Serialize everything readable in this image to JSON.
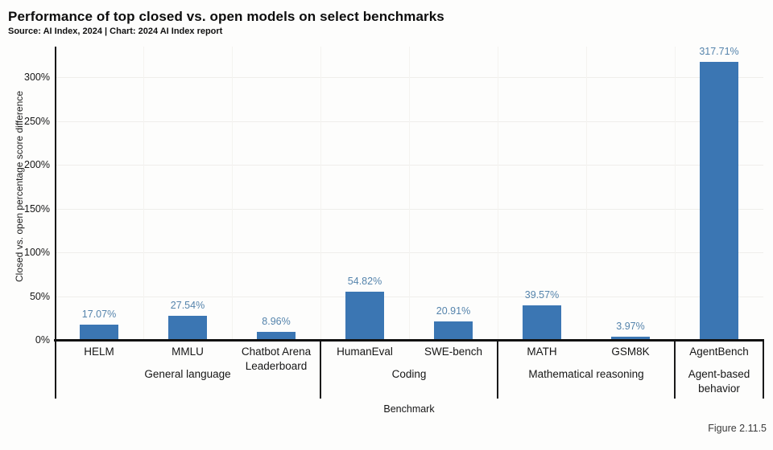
{
  "header": {
    "title": "Performance of top closed vs. open models on select benchmarks",
    "subtitle": "Source: AI Index, 2024 | Chart: 2024 AI Index report"
  },
  "figure_label": "Figure 2.11.5",
  "colors": {
    "bar": "#3b76b3",
    "value_label": "#5584ac",
    "axis": "#111111"
  },
  "chart_data": {
    "type": "bar",
    "title": "Performance of top closed vs. open models on select benchmarks",
    "xlabel": "Benchmark",
    "ylabel": "Closed vs. open percentage score difference",
    "ylim": [
      0,
      330
    ],
    "grid": true,
    "yticks": [
      0,
      50,
      100,
      150,
      200,
      250,
      300
    ],
    "ytick_labels": [
      "0%",
      "50%",
      "100%",
      "150%",
      "200%",
      "250%",
      "300%"
    ],
    "groups": [
      {
        "label": "General language",
        "bars": [
          {
            "category": "HELM",
            "value": 17.07,
            "label": "17.07%"
          },
          {
            "category": "MMLU",
            "value": 27.54,
            "label": "27.54%"
          },
          {
            "category": "Chatbot Arena Leaderboard",
            "value": 8.96,
            "label": "8.96%"
          }
        ]
      },
      {
        "label": "Coding",
        "bars": [
          {
            "category": "HumanEval",
            "value": 54.82,
            "label": "54.82%"
          },
          {
            "category": "SWE-bench",
            "value": 20.91,
            "label": "20.91%"
          }
        ]
      },
      {
        "label": "Mathematical reasoning",
        "bars": [
          {
            "category": "MATH",
            "value": 39.57,
            "label": "39.57%"
          },
          {
            "category": "GSM8K",
            "value": 3.97,
            "label": "3.97%"
          }
        ]
      },
      {
        "label": "Agent-based behavior",
        "bars": [
          {
            "category": "AgentBench",
            "value": 317.71,
            "label": "317.71%"
          }
        ]
      }
    ]
  }
}
